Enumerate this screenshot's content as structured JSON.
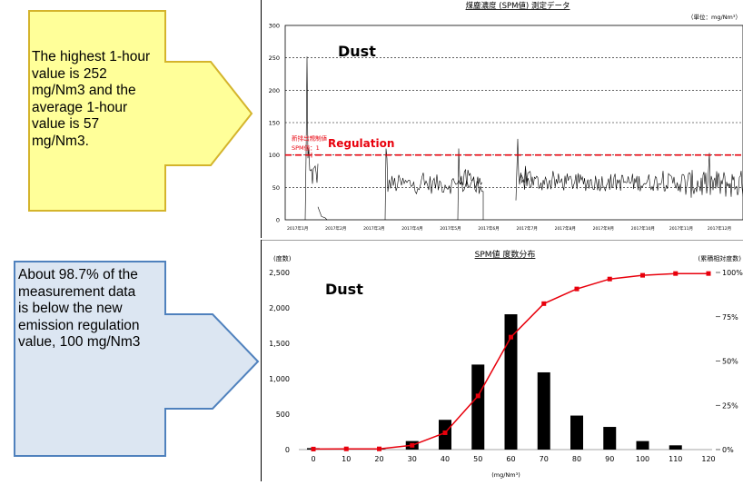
{
  "callouts": {
    "top": {
      "text": "The highest 1-hour value is 252 mg/Nm3 and the average 1-hour value is 57 mg/Nm3.",
      "fill": "#FFFF99",
      "stroke": "#D4B42C"
    },
    "bottom": {
      "text": "About 98.7% of the measurement data is below the new emission regulation value, 100 mg/Nm3",
      "fill": "#DCE6F2",
      "stroke": "#4F81BD"
    }
  },
  "chart_data": [
    {
      "type": "line",
      "title": "煤塵濃度 (SPM値) 測定データ",
      "unit_note": "（単位：mg/Nm³）",
      "annotation": "Dust",
      "regulation_label": "Regulation",
      "regulation_note_lines": [
        "新排出規制値",
        "SPM値：1"
      ],
      "regulation_value": 100,
      "peak_value": 252,
      "ylim": [
        0,
        300
      ],
      "yticks": [
        0,
        50,
        100,
        150,
        200,
        250,
        300
      ],
      "xtick_labels": [
        "2017年1月",
        "2017年2月",
        "2017年3月",
        "2017年4月",
        "2017年5月",
        "2017年6月",
        "2017年7月",
        "2017年8月",
        "2017年9月",
        "2017年10月",
        "2017年11月",
        "2017年12月"
      ],
      "regulation_color": "#E8000C",
      "line_color": "#000000"
    },
    {
      "type": "bar",
      "title": "SPM値 度数分布",
      "annotation": "Dust",
      "left_axis_label": "(度数)",
      "right_axis_label": "(累積相対度数)",
      "xlabel": "(mg/Nm³)",
      "categories": [
        "0",
        "10",
        "20",
        "30",
        "40",
        "50",
        "60",
        "70",
        "80",
        "90",
        "100",
        "110",
        "120"
      ],
      "values": [
        20,
        5,
        5,
        120,
        420,
        1200,
        1910,
        1090,
        480,
        320,
        120,
        60,
        0
      ],
      "cumulative": [
        0.3,
        0.4,
        0.4,
        2.4,
        9.5,
        30.3,
        63.5,
        82.4,
        90.7,
        96.3,
        98.4,
        99.4,
        99.4
      ],
      "ylim": [
        0,
        2500
      ],
      "yticks": [
        "0",
        "500",
        "1,000",
        "1,500",
        "2,000",
        "2,500"
      ],
      "y2ticks": [
        "0%",
        "25%",
        "50%",
        "75%",
        "100%"
      ],
      "bar_color": "#000000",
      "cumulative_color": "#E8000C"
    }
  ]
}
